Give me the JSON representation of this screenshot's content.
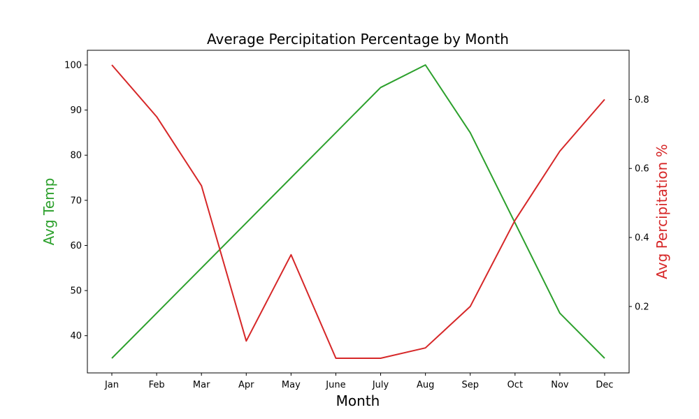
{
  "chart_data": {
    "type": "line",
    "title": "Average Percipitation Percentage by Month",
    "xlabel": "Month",
    "categories": [
      "Jan",
      "Feb",
      "Mar",
      "Apr",
      "May",
      "June",
      "July",
      "Aug",
      "Sep",
      "Oct",
      "Nov",
      "Dec"
    ],
    "series": [
      {
        "axis": "left",
        "color": "#2ca02c",
        "values": [
          35,
          45,
          55,
          65,
          75,
          85,
          95,
          100,
          85,
          65,
          45,
          35
        ]
      },
      {
        "axis": "right",
        "color": "#d62728",
        "values": [
          0.9,
          0.75,
          0.55,
          0.1,
          0.35,
          0.05,
          0.05,
          0.08,
          0.2,
          0.45,
          0.65,
          0.8
        ]
      }
    ],
    "y_left": {
      "label": "Avg Temp",
      "color": "#2ca02c",
      "ticks": [
        40,
        50,
        60,
        70,
        80,
        90,
        100
      ],
      "ylim": [
        31.75,
        103.25
      ]
    },
    "y_right": {
      "label": "Avg Percipitation %",
      "color": "#d62728",
      "ticks": [
        0.2,
        0.4,
        0.6,
        0.8
      ],
      "ylim": [
        0.0075,
        0.9425
      ]
    },
    "grid": false,
    "legend": "none"
  }
}
